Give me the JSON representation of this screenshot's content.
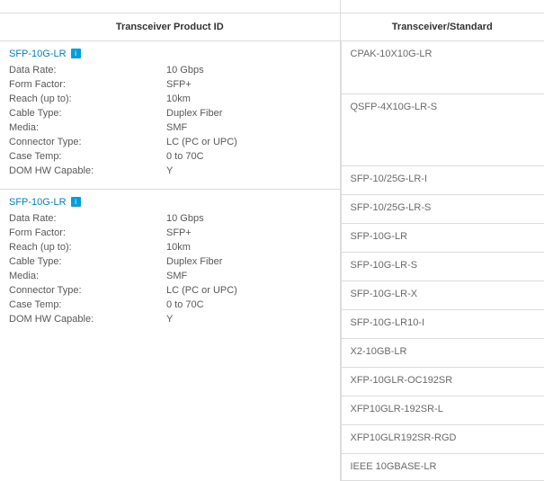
{
  "headers": {
    "left": "Transceiver Product ID",
    "right": "Transceiver/Standard"
  },
  "products": [
    {
      "name": "SFP-10G-LR",
      "specs": [
        {
          "label": "Data Rate:",
          "value": "10 Gbps"
        },
        {
          "label": "Form Factor:",
          "value": "SFP+"
        },
        {
          "label": "Reach (up to):",
          "value": "10km"
        },
        {
          "label": "Cable Type:",
          "value": "Duplex Fiber"
        },
        {
          "label": "Media:",
          "value": "SMF"
        },
        {
          "label": "Connector Type:",
          "value": "LC (PC or UPC)"
        },
        {
          "label": "Case Temp:",
          "value": "0 to 70C"
        },
        {
          "label": "DOM HW Capable:",
          "value": "Y"
        }
      ]
    },
    {
      "name": "SFP-10G-LR",
      "specs": [
        {
          "label": "Data Rate:",
          "value": "10 Gbps"
        },
        {
          "label": "Form Factor:",
          "value": "SFP+"
        },
        {
          "label": "Reach (up to):",
          "value": "10km"
        },
        {
          "label": "Cable Type:",
          "value": "Duplex Fiber"
        },
        {
          "label": "Media:",
          "value": "SMF"
        },
        {
          "label": "Connector Type:",
          "value": "LC (PC or UPC)"
        },
        {
          "label": "Case Temp:",
          "value": "0 to 70C"
        },
        {
          "label": "DOM HW Capable:",
          "value": "Y"
        }
      ]
    }
  ],
  "standards": [
    {
      "label": "CPAK-10X10G-LR",
      "height": 59
    },
    {
      "label": "QSFP-4X10G-LR-S",
      "height": 80
    },
    {
      "label": "SFP-10/25G-LR-I",
      "height": 32
    },
    {
      "label": "SFP-10/25G-LR-S",
      "height": 32
    },
    {
      "label": "SFP-10G-LR",
      "height": 32
    },
    {
      "label": "SFP-10G-LR-S",
      "height": 32
    },
    {
      "label": "SFP-10G-LR-X",
      "height": 32
    },
    {
      "label": "SFP-10G-LR10-I",
      "height": 32
    },
    {
      "label": "X2-10GB-LR",
      "height": 32
    },
    {
      "label": "XFP-10GLR-OC192SR",
      "height": 32
    },
    {
      "label": "XFP10GLR-192SR-L",
      "height": 32
    },
    {
      "label": "XFP10GLR192SR-RGD",
      "height": 32
    },
    {
      "label": "IEEE 10GBASE-LR",
      "height": 24
    }
  ],
  "icon_glyph": "i"
}
